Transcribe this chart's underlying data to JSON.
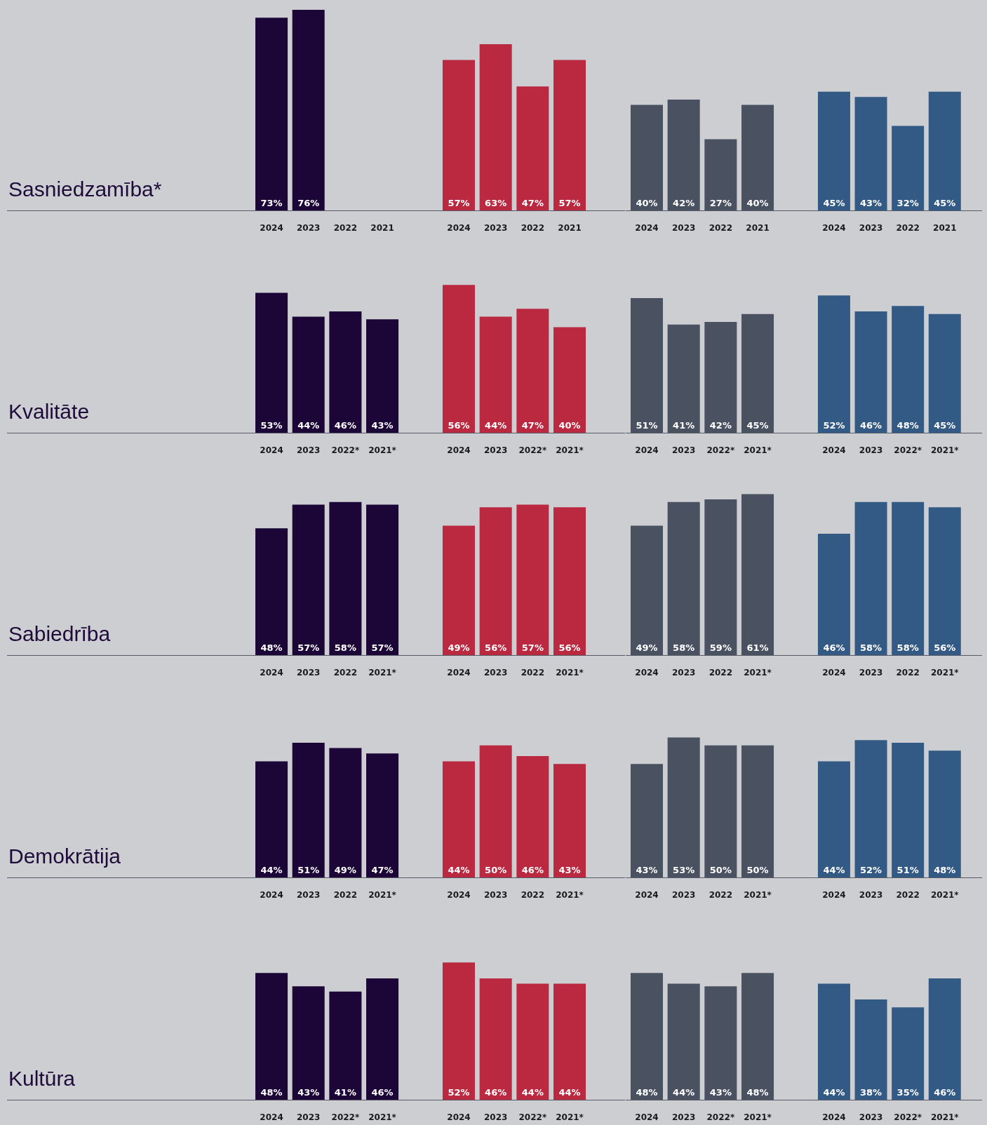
{
  "chart_data": [
    {
      "type": "bar",
      "ylabel": "Sasniedzamība*",
      "categories": [
        "2024",
        "2023",
        "2022",
        "2021"
      ],
      "values": [
        73,
        76,
        null,
        null
      ],
      "value_labels": [
        "73%",
        "76%",
        null,
        null
      ],
      "color": "#1c0637",
      "tick_labels": "x"
    },
    {
      "type": "bar",
      "categories": [
        "2024",
        "2023",
        "2022",
        "2021"
      ],
      "values": [
        57,
        63,
        47,
        57
      ],
      "value_labels": [
        "57%",
        "63%",
        "47%",
        "57%"
      ],
      "color": "#bb2940",
      "tick_labels": "x"
    },
    {
      "type": "bar",
      "categories": [
        "2024",
        "2023",
        "2022",
        "2021"
      ],
      "values": [
        40,
        42,
        27,
        40
      ],
      "value_labels": [
        "40%",
        "42%",
        "27%",
        "40%"
      ],
      "color": "#4a5261",
      "tick_labels": "x"
    },
    {
      "type": "bar",
      "categories": [
        "2024",
        "2023",
        "2022",
        "2021"
      ],
      "values": [
        45,
        43,
        32,
        45
      ],
      "value_labels": [
        "45%",
        "43%",
        "32%",
        "45%"
      ],
      "color": "#335a84",
      "tick_labels": "x"
    },
    {
      "type": "bar",
      "ylabel": "Kvalitāte",
      "categories": [
        "2024",
        "2023",
        "2022*",
        "2021*"
      ],
      "values": [
        53,
        44,
        46,
        43
      ],
      "value_labels": [
        "53%",
        "44%",
        "46%",
        "43%"
      ],
      "color": "#1c0637",
      "tick_labels": "x"
    },
    {
      "type": "bar",
      "categories": [
        "2024",
        "2023",
        "2022*",
        "2021*"
      ],
      "values": [
        56,
        44,
        47,
        40
      ],
      "value_labels": [
        "56%",
        "44%",
        "47%",
        "40%"
      ],
      "color": "#bb2940",
      "tick_labels": "x"
    },
    {
      "type": "bar",
      "categories": [
        "2024",
        "2023",
        "2022*",
        "2021*"
      ],
      "values": [
        51,
        41,
        42,
        45
      ],
      "value_labels": [
        "51%",
        "41%",
        "42%",
        "45%"
      ],
      "color": "#4a5261",
      "tick_labels": "x"
    },
    {
      "type": "bar",
      "categories": [
        "2024",
        "2023",
        "2022*",
        "2021*"
      ],
      "values": [
        52,
        46,
        48,
        45
      ],
      "value_labels": [
        "52%",
        "46%",
        "48%",
        "45%"
      ],
      "color": "#335a84",
      "tick_labels": "x"
    },
    {
      "type": "bar",
      "ylabel": "Sabiedrība",
      "categories": [
        "2024",
        "2023",
        "2022",
        "2021*"
      ],
      "values": [
        48,
        57,
        58,
        57
      ],
      "value_labels": [
        "48%",
        "57%",
        "58%",
        "57%"
      ],
      "color": "#1c0637",
      "tick_labels": "x"
    },
    {
      "type": "bar",
      "categories": [
        "2024",
        "2023",
        "2022",
        "2021*"
      ],
      "values": [
        49,
        56,
        57,
        56
      ],
      "value_labels": [
        "49%",
        "56%",
        "57%",
        "56%"
      ],
      "color": "#bb2940",
      "tick_labels": "x"
    },
    {
      "type": "bar",
      "categories": [
        "2024",
        "2023",
        "2022",
        "2021*"
      ],
      "values": [
        49,
        58,
        59,
        61
      ],
      "value_labels": [
        "49%",
        "58%",
        "59%",
        "61%"
      ],
      "color": "#4a5261",
      "tick_labels": "x"
    },
    {
      "type": "bar",
      "categories": [
        "2024",
        "2023",
        "2022",
        "2021*"
      ],
      "values": [
        46,
        58,
        58,
        56
      ],
      "value_labels": [
        "46%",
        "58%",
        "58%",
        "56%"
      ],
      "color": "#335a84",
      "tick_labels": "x"
    },
    {
      "type": "bar",
      "ylabel": "Demokrātija",
      "categories": [
        "2024",
        "2023",
        "2022",
        "2021*"
      ],
      "values": [
        44,
        51,
        49,
        47
      ],
      "value_labels": [
        "44%",
        "51%",
        "49%",
        "47%"
      ],
      "color": "#1c0637",
      "tick_labels": "x"
    },
    {
      "type": "bar",
      "categories": [
        "2024",
        "2023",
        "2022",
        "2021*"
      ],
      "values": [
        44,
        50,
        46,
        43
      ],
      "value_labels": [
        "44%",
        "50%",
        "46%",
        "43%"
      ],
      "color": "#bb2940",
      "tick_labels": "x"
    },
    {
      "type": "bar",
      "categories": [
        "2024",
        "2023",
        "2022",
        "2021*"
      ],
      "values": [
        43,
        53,
        50,
        50
      ],
      "value_labels": [
        "43%",
        "53%",
        "50%",
        "50%"
      ],
      "color": "#4a5261",
      "tick_labels": "x"
    },
    {
      "type": "bar",
      "categories": [
        "2024",
        "2023",
        "2022",
        "2021*"
      ],
      "values": [
        44,
        52,
        51,
        48
      ],
      "value_labels": [
        "44%",
        "52%",
        "51%",
        "48%"
      ],
      "color": "#335a84",
      "tick_labels": "x"
    },
    {
      "type": "bar",
      "ylabel": "Kultūra",
      "categories": [
        "2024",
        "2023",
        "2022*",
        "2021*"
      ],
      "values": [
        48,
        43,
        41,
        46
      ],
      "value_labels": [
        "48%",
        "43%",
        "41%",
        "46%"
      ],
      "color": "#1c0637",
      "tick_labels": "x"
    },
    {
      "type": "bar",
      "categories": [
        "2024",
        "2023",
        "2022*",
        "2021*"
      ],
      "values": [
        52,
        46,
        44,
        44
      ],
      "value_labels": [
        "52%",
        "46%",
        "44%",
        "44%"
      ],
      "color": "#bb2940",
      "tick_labels": "x"
    },
    {
      "type": "bar",
      "categories": [
        "2024",
        "2023",
        "2022*",
        "2021*"
      ],
      "values": [
        48,
        44,
        43,
        48
      ],
      "value_labels": [
        "48%",
        "44%",
        "43%",
        "48%"
      ],
      "color": "#4a5261",
      "tick_labels": "x"
    },
    {
      "type": "bar",
      "categories": [
        "2024",
        "2023",
        "2022*",
        "2021*"
      ],
      "values": [
        44,
        38,
        35,
        46
      ],
      "value_labels": [
        "44%",
        "38%",
        "35%",
        "46%"
      ],
      "color": "#335a84",
      "tick_labels": "x"
    }
  ]
}
